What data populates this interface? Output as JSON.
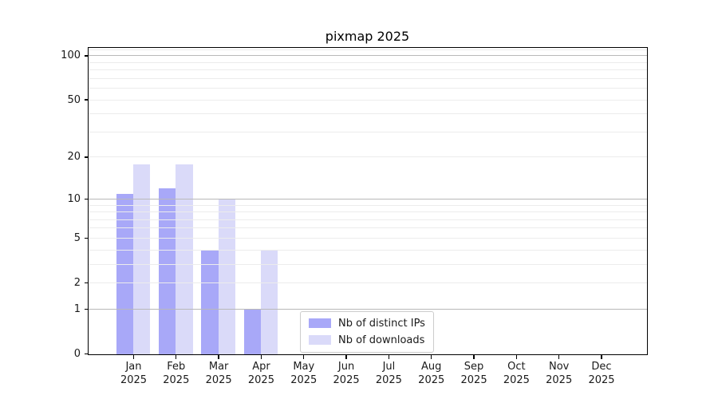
{
  "title": "pixmap 2025",
  "legend": [
    {
      "label": "Nb of distinct IPs",
      "color": "#a8a8f8"
    },
    {
      "label": "Nb of downloads",
      "color": "#dadaf9"
    }
  ],
  "chart_data": {
    "type": "bar",
    "title": "pixmap 2025",
    "categories": [
      "Jan 2025",
      "Feb 2025",
      "Mar 2025",
      "Apr 2025",
      "May 2025",
      "Jun 2025",
      "Jul 2025",
      "Aug 2025",
      "Sep 2025",
      "Oct 2025",
      "Nov 2025",
      "Dec 2025"
    ],
    "months": [
      "Jan",
      "Feb",
      "Mar",
      "Apr",
      "May",
      "Jun",
      "Jul",
      "Aug",
      "Sep",
      "Oct",
      "Nov",
      "Dec"
    ],
    "year": "2025",
    "series": [
      {
        "name": "Nb of distinct IPs",
        "color": "#a8a8f8",
        "values": [
          11,
          12,
          4,
          1,
          0,
          0,
          0,
          0,
          0,
          0,
          0,
          0
        ]
      },
      {
        "name": "Nb of downloads",
        "color": "#dadaf9",
        "values": [
          18,
          18,
          10,
          4,
          0,
          0,
          0,
          0,
          0,
          0,
          0,
          0
        ]
      }
    ],
    "yscale": "log(1+x)",
    "ylim": [
      0,
      113
    ],
    "ytick_values": [
      0,
      1,
      2,
      5,
      10,
      20,
      50,
      100
    ],
    "grid_major_values": [
      1,
      10,
      100
    ],
    "grid_minor_values": [
      2,
      3,
      4,
      5,
      6,
      7,
      8,
      9,
      20,
      30,
      40,
      50,
      60,
      70,
      80,
      90,
      110
    ],
    "grid": "horizontal major+minor, drawn above bars",
    "legend_position": "lower center, inside axes",
    "colors": {
      "spine": "#000000",
      "major_grid": "#b9b9b9",
      "minor_grid": "#ececec",
      "text": "#1a1a1a"
    }
  }
}
